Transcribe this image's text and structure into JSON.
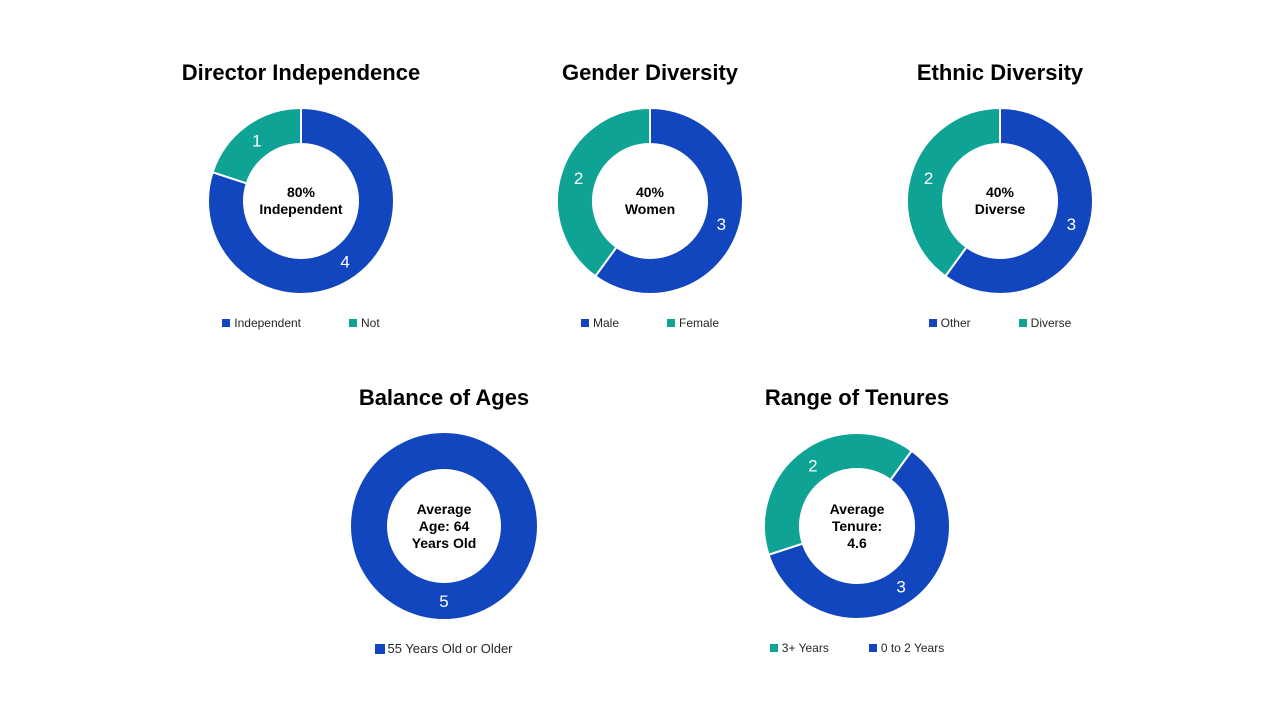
{
  "palette": {
    "blue": "#1246BE",
    "teal": "#0EA394",
    "slice_label_color": "#FFFFFF",
    "title_color": "#000000",
    "legend_text_color": "#262626",
    "background": "#FFFFFF"
  },
  "chart_data": [
    {
      "type": "pie",
      "variant": "donut",
      "title": "Director Independence",
      "center_lines": [
        "80%",
        "Independent"
      ],
      "rotation_deg": 0,
      "categories": [
        "Independent",
        "Not"
      ],
      "values": [
        4,
        1
      ],
      "slices": [
        {
          "label": "Independent",
          "value": 4,
          "data_label": "4",
          "color": "blue"
        },
        {
          "label": "Not",
          "value": 1,
          "data_label": "1",
          "color": "teal"
        }
      ],
      "legend": [
        {
          "label": "Independent",
          "color": "blue"
        },
        {
          "label": "Not",
          "color": "teal"
        }
      ],
      "legend_position": "bottom"
    },
    {
      "type": "pie",
      "variant": "donut",
      "title": "Gender Diversity",
      "center_lines": [
        "40%",
        "Women"
      ],
      "rotation_deg": 0,
      "categories": [
        "Male",
        "Female"
      ],
      "values": [
        3,
        2
      ],
      "slices": [
        {
          "label": "Male",
          "value": 3,
          "data_label": "3",
          "color": "blue"
        },
        {
          "label": "Female",
          "value": 2,
          "data_label": "2",
          "color": "teal"
        }
      ],
      "legend": [
        {
          "label": "Male",
          "color": "blue"
        },
        {
          "label": "Female",
          "color": "teal"
        }
      ],
      "legend_position": "bottom"
    },
    {
      "type": "pie",
      "variant": "donut",
      "title": "Ethnic Diversity",
      "center_lines": [
        "40%",
        "Diverse"
      ],
      "rotation_deg": 0,
      "categories": [
        "Other",
        "Diverse"
      ],
      "values": [
        3,
        2
      ],
      "slices": [
        {
          "label": "Other",
          "value": 3,
          "data_label": "3",
          "color": "blue"
        },
        {
          "label": "Diverse",
          "value": 2,
          "data_label": "2",
          "color": "teal"
        }
      ],
      "legend": [
        {
          "label": "Other",
          "color": "blue"
        },
        {
          "label": "Diverse",
          "color": "teal"
        }
      ],
      "legend_position": "bottom"
    },
    {
      "type": "pie",
      "variant": "donut",
      "title": "Balance of Ages",
      "center_lines": [
        "Average",
        "Age: 64",
        "Years Old"
      ],
      "rotation_deg": 0,
      "categories": [
        "55 Years Old or Older"
      ],
      "values": [
        5
      ],
      "slices": [
        {
          "label": "55 Years Old or Older",
          "value": 5,
          "data_label": "5",
          "color": "blue"
        }
      ],
      "legend": [
        {
          "label": "55 Years Old or Older",
          "color": "blue"
        }
      ],
      "legend_position": "bottom"
    },
    {
      "type": "pie",
      "variant": "donut",
      "title": "Range of Tenures",
      "center_lines": [
        "Average",
        "Tenure:",
        "4.6"
      ],
      "rotation_deg": 36,
      "categories": [
        "0 to 2 Years",
        "3+ Years"
      ],
      "values": [
        3,
        2
      ],
      "slices": [
        {
          "label": "0 to 2 Years",
          "value": 3,
          "data_label": "3",
          "color": "blue"
        },
        {
          "label": "3+ Years",
          "value": 2,
          "data_label": "2",
          "color": "teal"
        }
      ],
      "legend": [
        {
          "label": "3+ Years",
          "color": "teal"
        },
        {
          "label": "0 to 2 Years",
          "color": "blue"
        }
      ],
      "legend_position": "bottom"
    }
  ]
}
